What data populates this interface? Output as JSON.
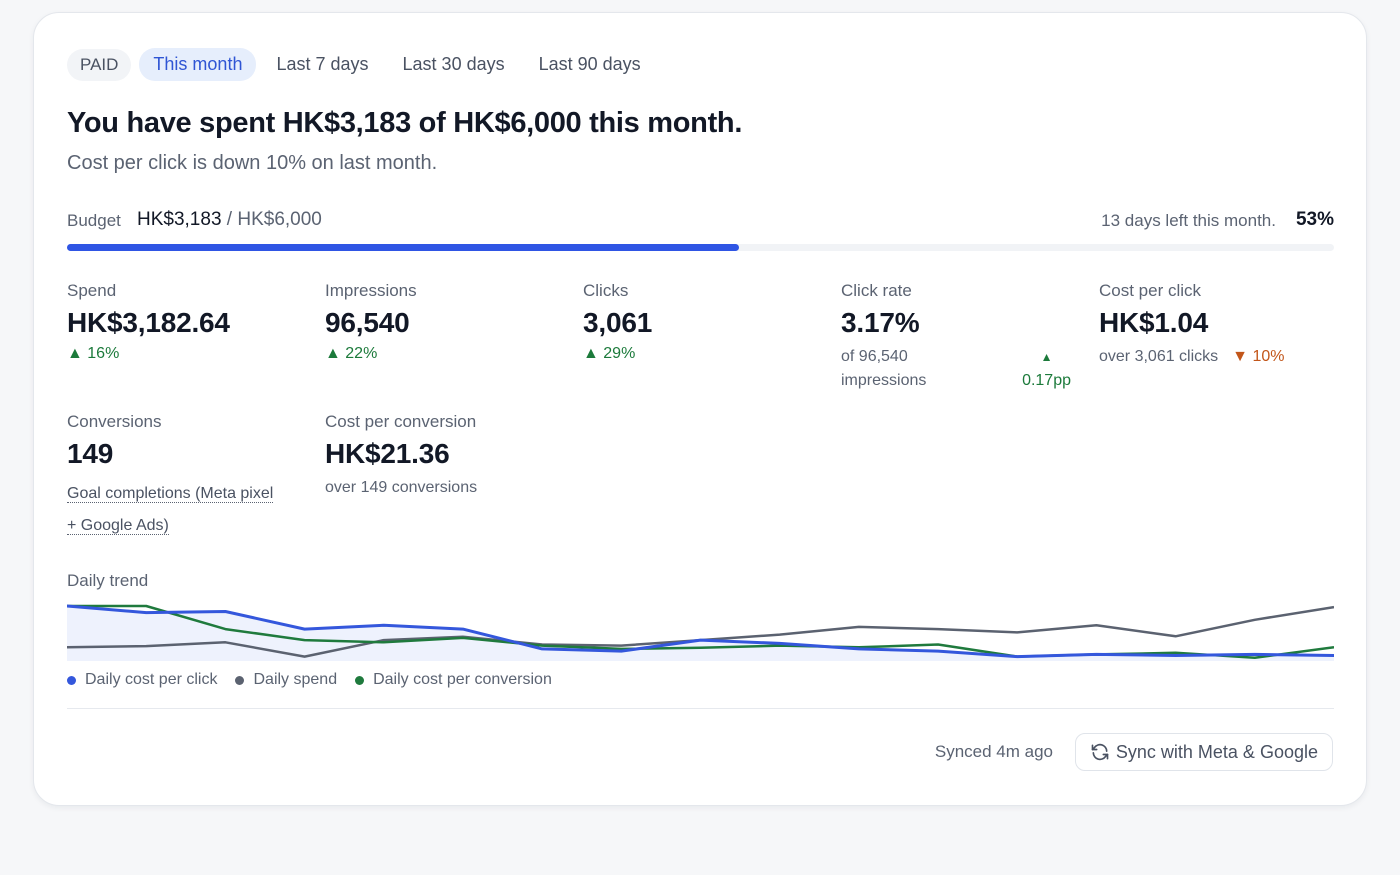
{
  "tabs": {
    "badge": "PAID",
    "items": [
      {
        "label": "This month",
        "active": true
      },
      {
        "label": "Last 7 days",
        "active": false
      },
      {
        "label": "Last 30 days",
        "active": false
      },
      {
        "label": "Last 90 days",
        "active": false
      }
    ]
  },
  "headline": "You have spent HK$3,183 of HK$6,000 this month.",
  "subline": "Cost per click is down 10% on last month.",
  "budget": {
    "label": "Budget",
    "spent": "HK$3,183",
    "separator": " / ",
    "total": "HK$6,000",
    "days_left": "13 days left this month.",
    "percent_text": "53%",
    "progress": 0.53
  },
  "metrics": {
    "spend": {
      "label": "Spend",
      "value": "HK$3,182.64",
      "delta": "▲ 16%"
    },
    "impressions": {
      "label": "Impressions",
      "value": "96,540",
      "delta": "▲ 22%"
    },
    "clicks": {
      "label": "Clicks",
      "value": "3,061",
      "delta": "▲ 29%"
    },
    "click_rate": {
      "label": "Click rate",
      "value": "3.17%",
      "sub_line1": "of 96,540",
      "sub_line2": "impressions",
      "delta_arrow": "▲",
      "delta": "0.17pp"
    },
    "cost_per_click": {
      "label": "Cost per click",
      "value": "HK$1.04",
      "sub": "over 3,061 clicks",
      "delta": "▼ 10%"
    },
    "conversions": {
      "label": "Conversions",
      "value": "149",
      "link_line1": "Goal completions (Meta pixel",
      "link_line2": "+ Google Ads)"
    },
    "cost_per_conversion": {
      "label": "Cost per conversion",
      "value": "HK$21.36",
      "sub": "over 149 conversions"
    }
  },
  "trend": {
    "label": "Daily trend",
    "legend": [
      {
        "name": "Daily cost per click",
        "color": "#3457dc"
      },
      {
        "name": "Daily spend",
        "color": "#5b6270"
      },
      {
        "name": "Daily cost per conversion",
        "color": "#1f7a3d"
      }
    ]
  },
  "chart_data": {
    "type": "line",
    "title": "Daily trend",
    "xlabel": "",
    "ylabel": "",
    "grid": false,
    "legend_position": "bottom-left",
    "x": [
      1,
      2,
      3,
      4,
      5,
      6,
      7,
      8,
      9,
      10,
      11,
      12,
      13,
      14,
      15,
      16,
      17
    ],
    "ylim": [
      0,
      1
    ],
    "series": [
      {
        "name": "Daily cost per click",
        "color": "#3457dc",
        "values": [
          1.0,
          0.88,
          0.9,
          0.58,
          0.65,
          0.58,
          0.22,
          0.18,
          0.38,
          0.32,
          0.22,
          0.18,
          0.08,
          0.12,
          0.1,
          0.12,
          0.1
        ]
      },
      {
        "name": "Daily spend",
        "color": "#5b6270",
        "values": [
          0.25,
          0.27,
          0.34,
          0.08,
          0.38,
          0.44,
          0.3,
          0.28,
          0.38,
          0.48,
          0.62,
          0.58,
          0.52,
          0.65,
          0.45,
          0.75,
          0.98
        ]
      },
      {
        "name": "Daily cost per conversion",
        "color": "#1f7a3d",
        "values": [
          1.0,
          1.0,
          0.58,
          0.38,
          0.34,
          0.42,
          0.28,
          0.22,
          0.24,
          0.28,
          0.25,
          0.3,
          0.08,
          0.12,
          0.15,
          0.06,
          0.25
        ]
      }
    ]
  },
  "footer": {
    "synced": "Synced 4m ago",
    "sync_button": "Sync with Meta & Google"
  }
}
